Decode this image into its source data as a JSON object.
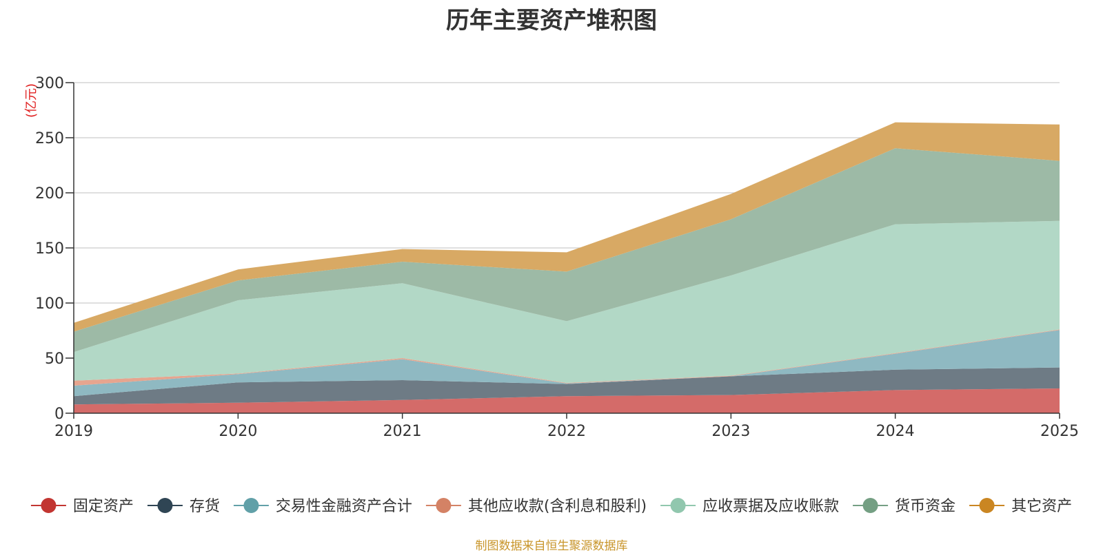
{
  "title": "历年主要资产堆积图",
  "source_note": "制图数据来自恒生聚源数据库",
  "chart_data": {
    "type": "area",
    "stacked": true,
    "x": [
      "2019",
      "2020",
      "2021",
      "2022",
      "2023",
      "2024",
      "2025"
    ],
    "ylim": [
      0,
      300
    ],
    "yticks": [
      0,
      50,
      100,
      150,
      200,
      250,
      300
    ],
    "ylabel": "(亿元)",
    "grid": true,
    "legend_position": "bottom",
    "series": [
      {
        "name": "固定资产",
        "color": "#c23531",
        "area_color": "#d46b69",
        "values": [
          8,
          9.5,
          12,
          15.5,
          16.5,
          21,
          22.5
        ]
      },
      {
        "name": "存货",
        "color": "#2f4554",
        "area_color": "#6e7b85",
        "values": [
          7.5,
          18.5,
          18,
          11,
          17,
          18.5,
          19
        ]
      },
      {
        "name": "交易性金融资产合计",
        "color": "#61a0a8",
        "area_color": "#8fb9c2",
        "values": [
          9.5,
          7.5,
          19,
          0.5,
          0,
          14.5,
          34
        ]
      },
      {
        "name": "其他应收款(含利息和股利)",
        "color": "#d48265",
        "area_color": "#e6a58f",
        "values": [
          4.5,
          0.5,
          1,
          0.5,
          0.5,
          0.5,
          0.5
        ]
      },
      {
        "name": "应收票据及应收账款",
        "color": "#91c7ae",
        "area_color": "#b2d8c6",
        "values": [
          26,
          66.5,
          68,
          56,
          91,
          117,
          98.5
        ]
      },
      {
        "name": "货币资金",
        "color": "#749f83",
        "area_color": "#9dbaa6",
        "values": [
          18.5,
          18,
          19.5,
          45,
          51,
          69,
          54.5
        ]
      },
      {
        "name": "其它资产",
        "color": "#ca8622",
        "area_color": "#d8a964",
        "values": [
          8,
          10,
          11.5,
          17.5,
          23,
          23.5,
          33
        ]
      }
    ]
  }
}
